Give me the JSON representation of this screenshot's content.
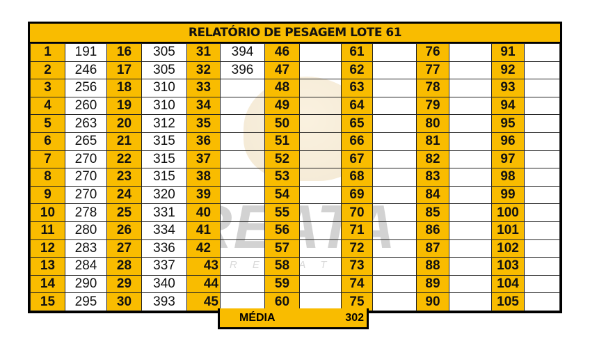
{
  "title": "RELATÓRIO DE PESAGEM LOTE  61",
  "columns": [
    {
      "numbers": [
        1,
        2,
        3,
        4,
        5,
        6,
        7,
        8,
        9,
        10,
        11,
        12,
        13,
        14,
        15
      ],
      "weights": [
        "191",
        "246",
        "256",
        "260",
        "263",
        "265",
        "270",
        "270",
        "270",
        "278",
        "280",
        "283",
        "284",
        "290",
        "295"
      ]
    },
    {
      "numbers": [
        16,
        17,
        18,
        19,
        20,
        21,
        22,
        23,
        24,
        25,
        26,
        27,
        28,
        29,
        30
      ],
      "weights": [
        "305",
        "305",
        "310",
        "310",
        "312",
        "315",
        "315",
        "315",
        "320",
        "331",
        "334",
        "336",
        "337",
        "340",
        "393"
      ]
    },
    {
      "numbers": [
        31,
        32,
        33,
        34,
        35,
        36,
        37,
        38,
        39,
        40,
        41,
        42,
        43,
        44,
        45
      ],
      "weights": [
        "394",
        "396",
        "",
        "",
        "",
        "",
        "",
        "",
        "",
        "",
        "",
        "",
        "",
        "",
        ""
      ]
    },
    {
      "numbers": [
        46,
        47,
        48,
        49,
        50,
        51,
        52,
        53,
        54,
        55,
        56,
        57,
        58,
        59,
        60
      ],
      "weights": [
        "",
        "",
        "",
        "",
        "",
        "",
        "",
        "",
        "",
        "",
        "",
        "",
        "",
        "",
        ""
      ]
    },
    {
      "numbers": [
        61,
        62,
        63,
        64,
        65,
        66,
        67,
        68,
        69,
        70,
        71,
        72,
        73,
        74,
        75
      ],
      "weights": [
        "",
        "",
        "",
        "",
        "",
        "",
        "",
        "",
        "",
        "",
        "",
        "",
        "",
        "",
        ""
      ]
    },
    {
      "numbers": [
        76,
        77,
        78,
        79,
        80,
        81,
        82,
        83,
        84,
        85,
        86,
        87,
        88,
        89,
        90
      ],
      "weights": [
        "",
        "",
        "",
        "",
        "",
        "",
        "",
        "",
        "",
        "",
        "",
        "",
        "",
        "",
        ""
      ]
    },
    {
      "numbers": [
        91,
        92,
        93,
        94,
        95,
        96,
        97,
        98,
        99,
        100,
        101,
        102,
        103,
        104,
        105
      ],
      "weights": [
        "",
        "",
        "",
        "",
        "",
        "",
        "",
        "",
        "",
        "",
        "",
        "",
        "",
        "",
        ""
      ]
    }
  ],
  "media": {
    "label": "MÉDIA",
    "value": "302"
  },
  "watermark": {
    "name": "REATA",
    "tagline": "REMATES"
  },
  "colors": {
    "header_fill": "#f9bc00",
    "border": "#000000"
  }
}
